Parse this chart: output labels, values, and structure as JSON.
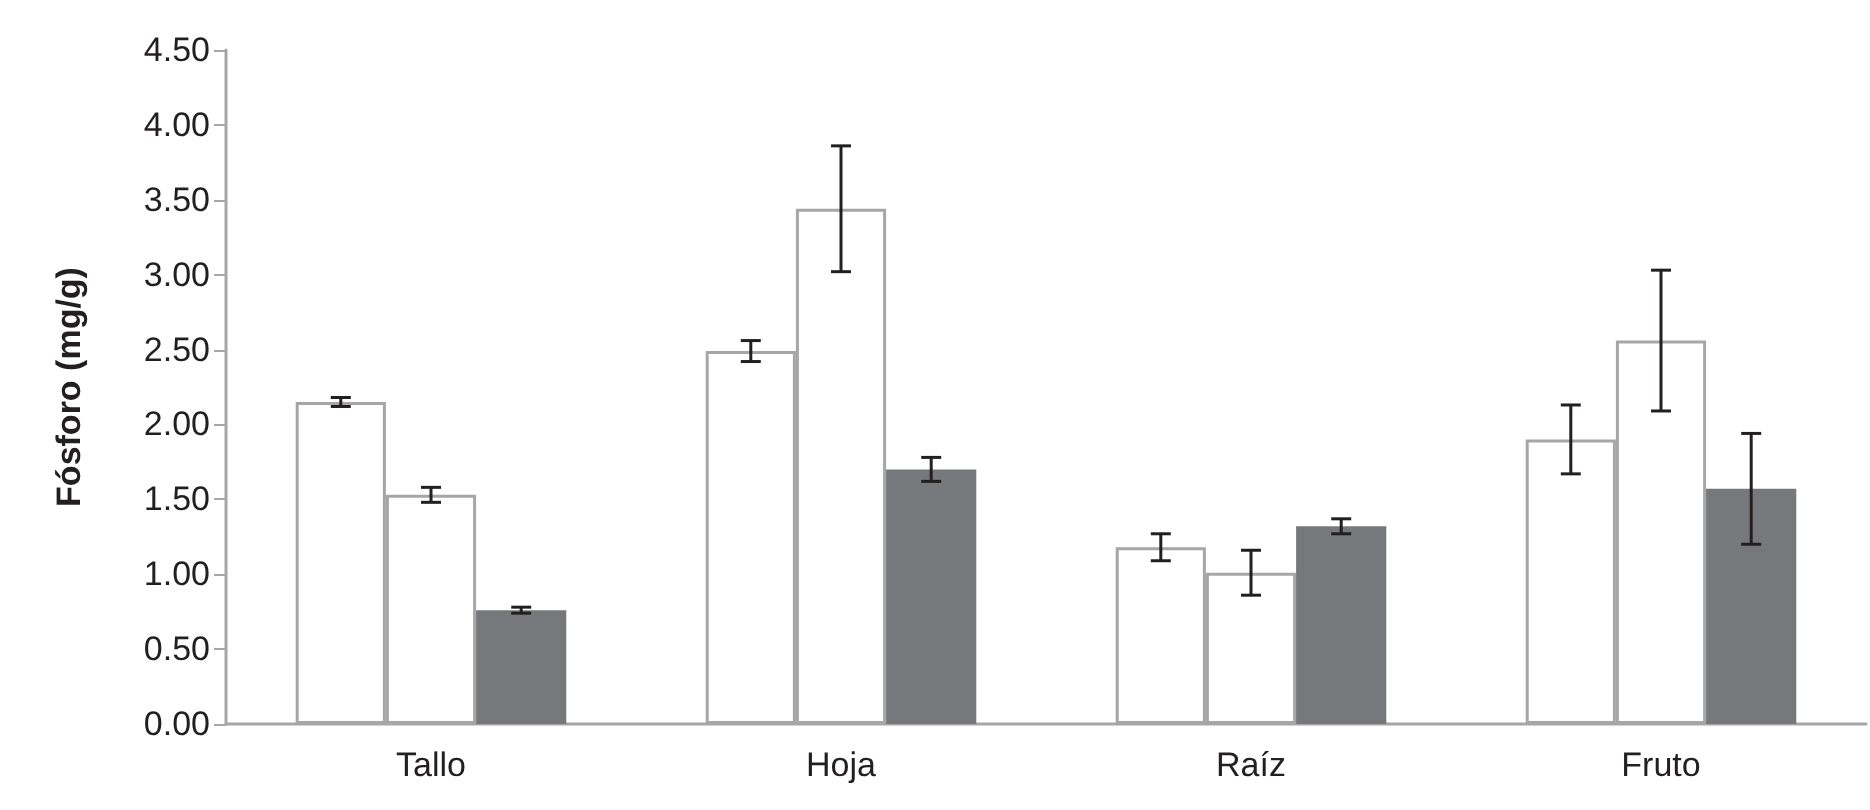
{
  "chart_data": {
    "type": "bar",
    "ylabel": "Fósforo (mg/g)",
    "categories": [
      "Tallo",
      "Hoja",
      "Raíz",
      "Fruto"
    ],
    "series": [
      {
        "color": "#ffffff",
        "values": [
          2.15,
          2.49,
          1.18,
          1.9
        ],
        "errors": [
          0.03,
          0.07,
          0.09,
          0.23
        ]
      },
      {
        "color": "#ffffff",
        "values": [
          1.53,
          3.44,
          1.01,
          2.56
        ],
        "errors": [
          0.05,
          0.42,
          0.15,
          0.47
        ]
      },
      {
        "color": "#77787b",
        "values": [
          0.76,
          1.7,
          1.32,
          1.57
        ],
        "errors": [
          0.02,
          0.08,
          0.05,
          0.37
        ]
      }
    ],
    "ylim": [
      0,
      4.5
    ],
    "yticks": [
      {
        "value": 0,
        "label": "0.00"
      },
      {
        "value": 0.5,
        "label": "0.50"
      },
      {
        "value": 1,
        "label": "1.00"
      },
      {
        "value": 1.5,
        "label": "1.50"
      },
      {
        "value": 2,
        "label": "2.00"
      },
      {
        "value": 2.5,
        "label": "2.50"
      },
      {
        "value": 3,
        "label": "3.00"
      },
      {
        "value": 3.5,
        "label": "3.50"
      },
      {
        "value": 4,
        "label": "4.00"
      },
      {
        "value": 4.5,
        "label": "4.50"
      }
    ],
    "grid": false
  }
}
